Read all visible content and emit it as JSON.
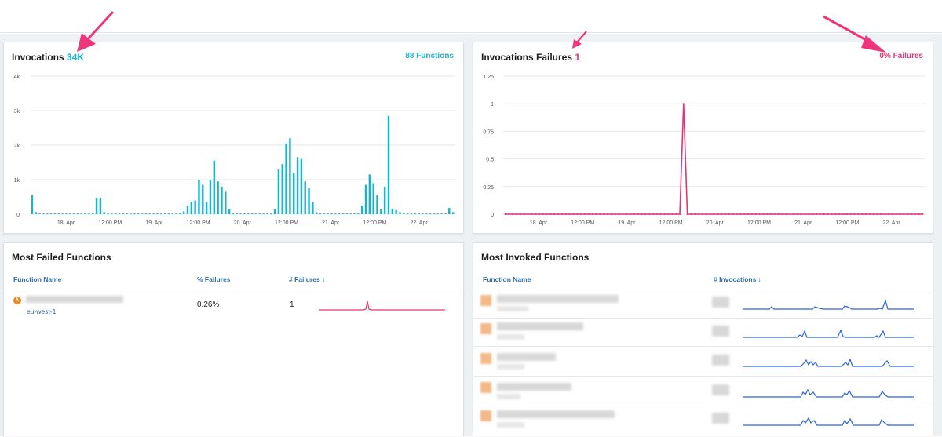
{
  "invocations": {
    "title": "Invocations",
    "count": "34K",
    "functions_link": "88 Functions",
    "y_ticks": [
      "4k",
      "3k",
      "2k",
      "1k",
      "0"
    ],
    "x_ticks": [
      "18. Apr",
      "12:00 PM",
      "19. Apr",
      "12:00 PM",
      "20. Apr",
      "12:00 PM",
      "21. Apr",
      "12:00 PM",
      "22. Apr"
    ],
    "color": "#1ab3c9"
  },
  "failures": {
    "title": "Invocations Failures",
    "count": "1",
    "percent_link": "0% Failures",
    "y_ticks": [
      "1.25",
      "1",
      "0.75",
      "0.5",
      "0.25",
      "0"
    ],
    "x_ticks": [
      "18. Apr",
      "12:00 PM",
      "19. Apr",
      "12:00 PM",
      "20. Apr",
      "12:00 PM",
      "21. Apr",
      "12:00 PM",
      "22. Apr"
    ],
    "color": "#e2357a"
  },
  "most_failed": {
    "title": "Most Failed Functions",
    "columns": [
      "Function Name",
      "% Failures",
      "# Failures ↓"
    ],
    "rows": [
      {
        "region": "eu-west-1",
        "percent": "0.26%",
        "failures": "1",
        "icon": "lambda-icon"
      }
    ]
  },
  "most_invoked": {
    "title": "Most Invoked Functions",
    "columns": [
      "Function Name",
      "# Invocations ↓"
    ],
    "sparkline_color": "#2b63d9"
  },
  "chart_data": [
    {
      "type": "bar",
      "title": "Invocations 34K",
      "ylim": [
        0,
        4000
      ],
      "x_tick_labels": [
        "18. Apr",
        "12:00 PM",
        "19. Apr",
        "12:00 PM",
        "20. Apr",
        "12:00 PM",
        "21. Apr",
        "12:00 PM",
        "22. Apr"
      ],
      "y_tick_labels": [
        "0",
        "1k",
        "2k",
        "3k",
        "4k"
      ],
      "values": [
        550,
        60,
        20,
        20,
        20,
        20,
        20,
        20,
        20,
        20,
        20,
        20,
        20,
        20,
        20,
        20,
        20,
        470,
        470,
        60,
        20,
        20,
        20,
        20,
        20,
        20,
        20,
        20,
        20,
        20,
        20,
        20,
        20,
        20,
        20,
        20,
        20,
        20,
        20,
        20,
        80,
        250,
        350,
        400,
        1000,
        850,
        350,
        1000,
        1550,
        950,
        800,
        650,
        150,
        20,
        20,
        20,
        20,
        20,
        20,
        20,
        20,
        20,
        20,
        20,
        150,
        1300,
        1450,
        2050,
        2200,
        1200,
        1650,
        1600,
        950,
        750,
        350,
        60,
        20,
        20,
        20,
        20,
        20,
        20,
        20,
        20,
        20,
        20,
        20,
        250,
        850,
        1150,
        900,
        550,
        150,
        800,
        2850,
        150,
        120,
        60,
        20,
        20,
        20,
        20,
        20,
        20,
        20,
        20,
        20,
        20,
        20,
        20,
        180,
        60
      ]
    },
    {
      "type": "line",
      "title": "Invocations Failures 1",
      "ylim": [
        0,
        1.25
      ],
      "x_tick_labels": [
        "18. Apr",
        "12:00 PM",
        "19. Apr",
        "12:00 PM",
        "20. Apr",
        "12:00 PM",
        "21. Apr",
        "12:00 PM",
        "22. Apr"
      ],
      "y_tick_labels": [
        "0",
        "0.25",
        "0.5",
        "0.75",
        "1",
        "1.25"
      ],
      "values": [
        0,
        0,
        0,
        0,
        0,
        0,
        0,
        0,
        0,
        0,
        0,
        0,
        0,
        0,
        0,
        0,
        0,
        0,
        0,
        0,
        0,
        0,
        0,
        0,
        0,
        0,
        0,
        0,
        0,
        0,
        0,
        0,
        0,
        0,
        0,
        0,
        0,
        0,
        0,
        0,
        0,
        0,
        0,
        0,
        0,
        0,
        0,
        1,
        0,
        0,
        0,
        0,
        0,
        0,
        0,
        0,
        0,
        0,
        0,
        0,
        0,
        0,
        0,
        0,
        0,
        0,
        0,
        0,
        0,
        0,
        0,
        0,
        0,
        0,
        0,
        0,
        0,
        0,
        0,
        0,
        0,
        0,
        0,
        0,
        0,
        0,
        0,
        0,
        0,
        0,
        0,
        0,
        0,
        0,
        0,
        0,
        0,
        0,
        0,
        0,
        0,
        0,
        0,
        0,
        0,
        0,
        0,
        0,
        0,
        0,
        0
      ]
    }
  ]
}
